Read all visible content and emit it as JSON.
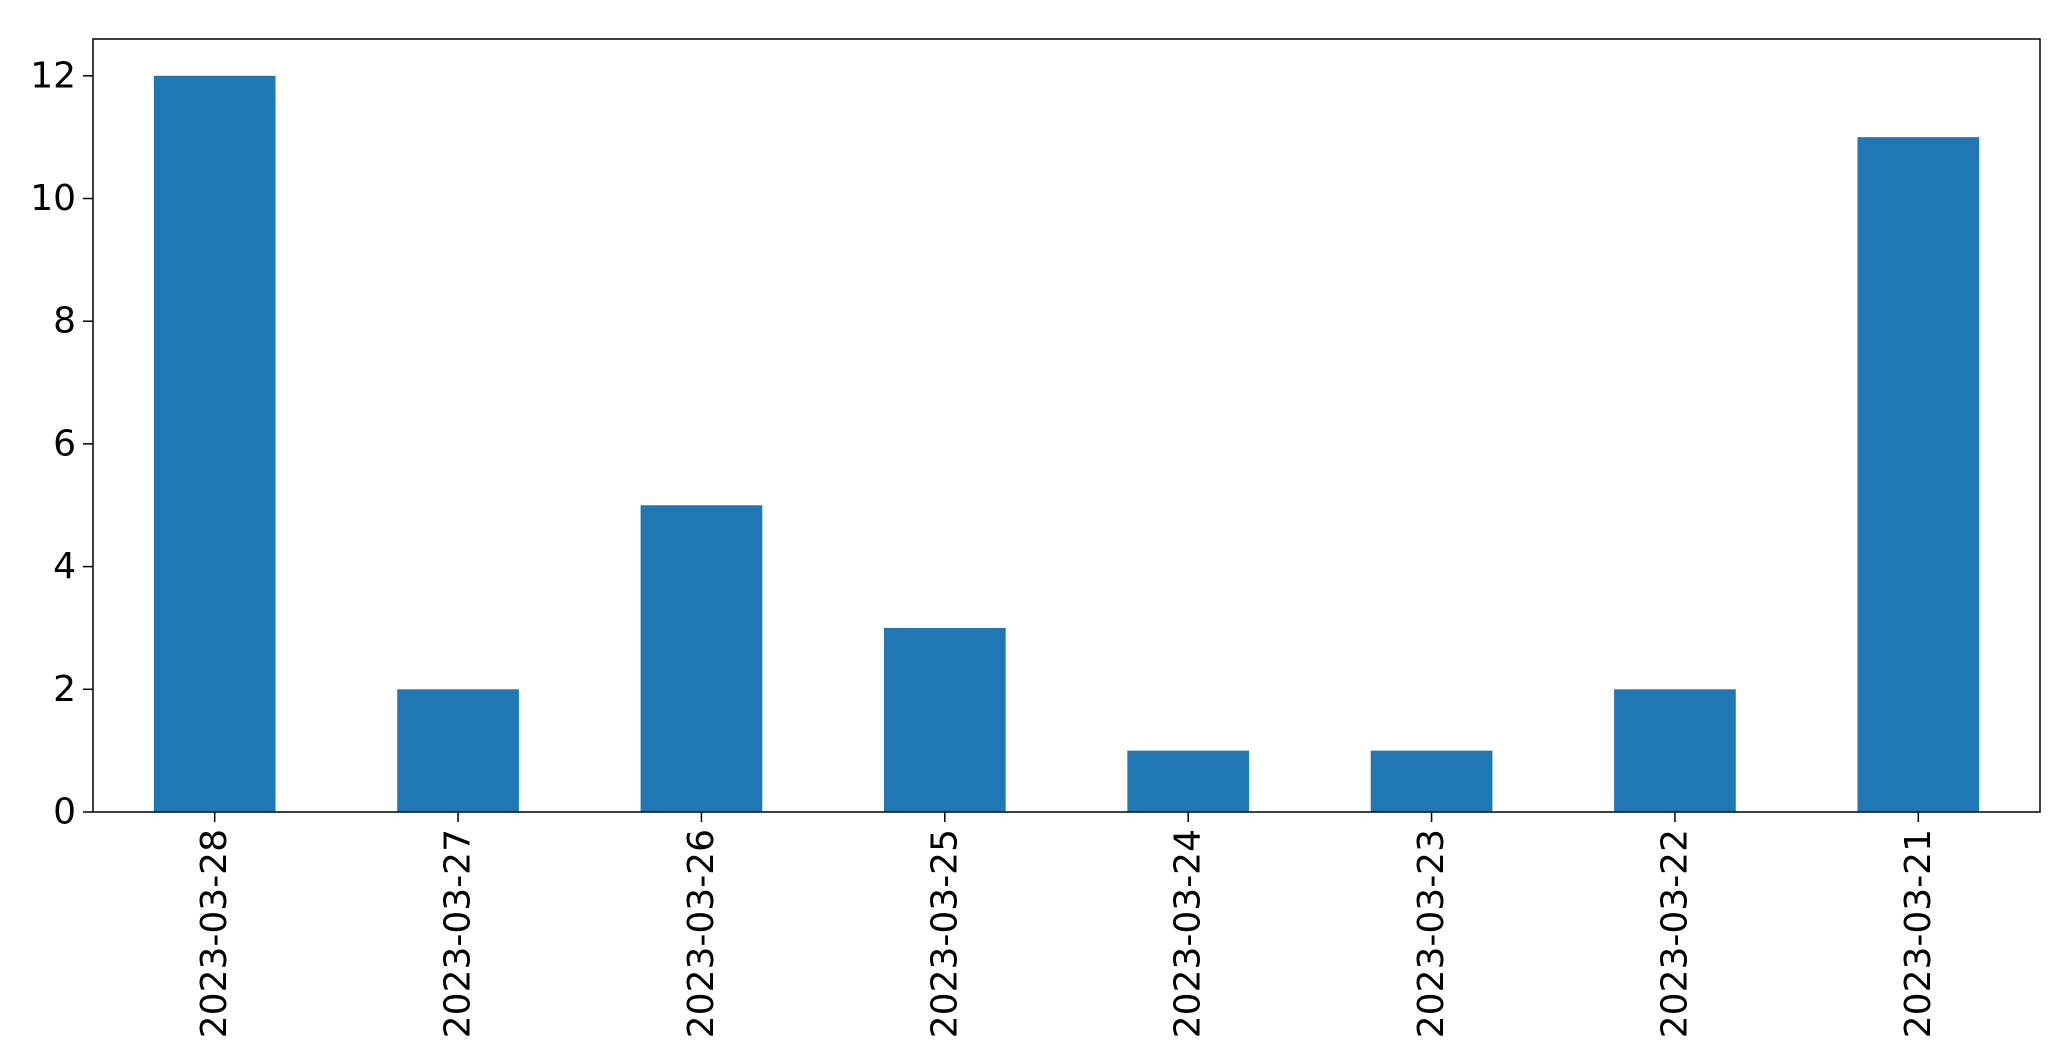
{
  "chart_data": {
    "type": "bar",
    "title": "",
    "xlabel": "",
    "ylabel": "",
    "categories": [
      "2023-03-28",
      "2023-03-27",
      "2023-03-26",
      "2023-03-25",
      "2023-03-24",
      "2023-03-23",
      "2023-03-22",
      "2023-03-21"
    ],
    "values": [
      12,
      2,
      5,
      3,
      1,
      1,
      2,
      11
    ],
    "ylim": [
      0,
      12.6
    ],
    "yticks": [
      0,
      2,
      4,
      6,
      8,
      10,
      12
    ],
    "x_tick_rotation": "vertical",
    "grid": false,
    "legend": "none",
    "bar_color": "#1f77b4",
    "axis_color": "#000000",
    "text_color": "#000000"
  }
}
